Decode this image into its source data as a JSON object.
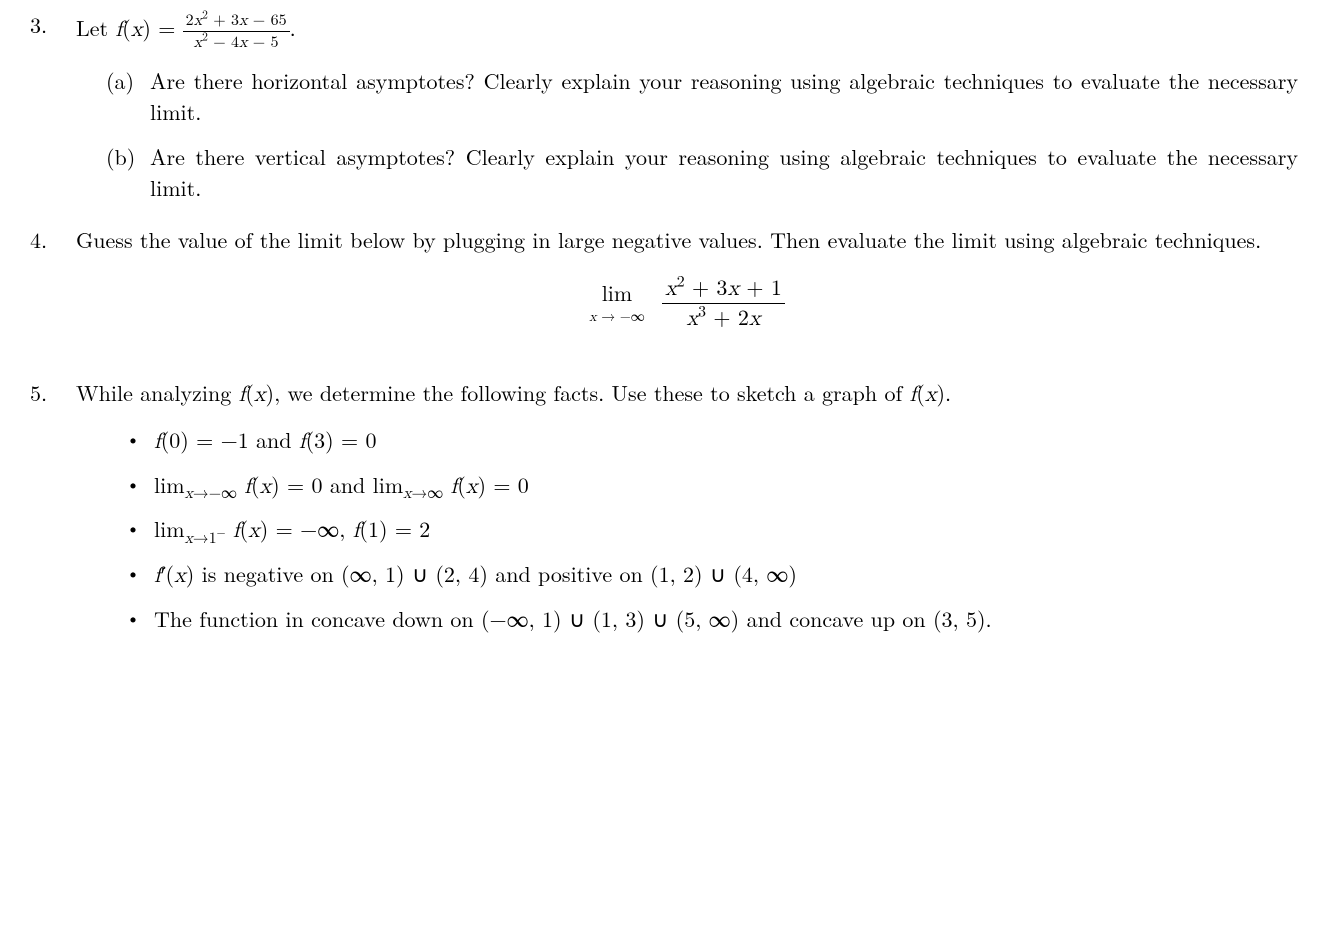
{
  "p3": {
    "num": "3.",
    "intro_pre": "Let ",
    "f": "f",
    "x": "x",
    "eq": " = ",
    "frac_num_a": "2",
    "frac_num_b": " + 3",
    "frac_num_c": " − 65",
    "frac_den_a": " − 4",
    "frac_den_b": " − 5",
    "dot": ".",
    "a_label": "(a)",
    "a_text": "Are there horizontal asymptotes? Clearly explain your reasoning using algebraic techniques to evaluate the necessary limit.",
    "b_label": "(b)",
    "b_text": "Are there vertical asymptotes? Clearly explain your reasoning using algebraic techniques to evaluate the necessary limit."
  },
  "p4": {
    "num": "4.",
    "text": "Guess the value of the limit below by plugging in large negative values. Then evaluate the limit using algebraic techniques.",
    "lim": "lim",
    "limsub_a": " → −∞",
    "num_a": " + 3",
    "num_b": " + 1",
    "den_a": " + 2"
  },
  "p5": {
    "num": "5.",
    "text_a": "While analyzing ",
    "text_b": ", we determine the following facts. Use these to sketch a graph of ",
    "text_c": ".",
    "bullets": {
      "b1_a": "(0) = −1 and ",
      "b1_b": "(3) = 0",
      "b2_a": "lim",
      "b2_sub1": "→−∞",
      "b2_mid": " = 0 and lim",
      "b2_sub2": "→∞",
      "b2_end": " = 0",
      "b3_a": "lim",
      "b3_sub": "→1",
      "b3_minus": "−",
      "b3_mid": " = −∞, ",
      "b3_end": "(1) = 2",
      "b4_a": " is negative on (∞, 1) ∪ (2, 4) and positive on (1, 2) ∪ (4, ∞)",
      "b5_a": "The function in concave down on (−∞, 1) ∪ (1, 3) ∪ (5, ∞) and concave up on (3, 5)."
    }
  }
}
